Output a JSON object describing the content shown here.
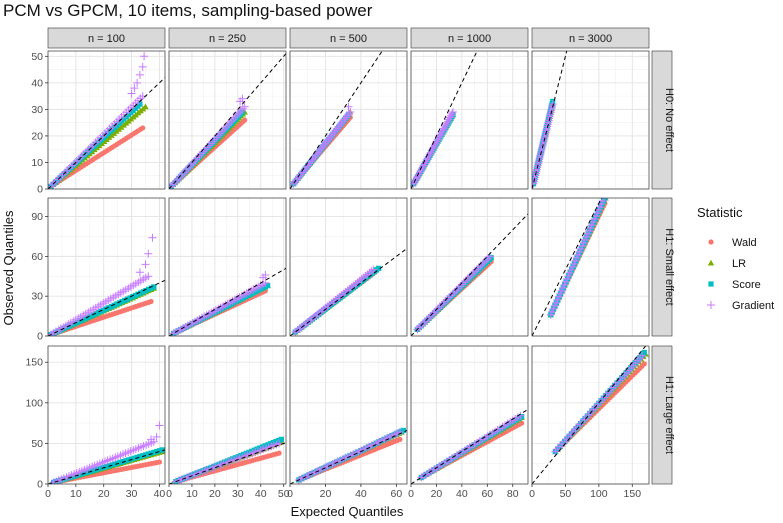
{
  "chart_data": {
    "type": "scatter",
    "title": "PCM vs GPCM, 10 items, sampling-based power",
    "xlabel": "Expected Quantiles",
    "ylabel": "Observed Quantiles",
    "legend": {
      "title": "Statistic",
      "position": "right",
      "entries": [
        {
          "name": "Wald",
          "color": "#F8766D",
          "marker": "circle"
        },
        {
          "name": "LR",
          "color": "#7CAE00",
          "marker": "triangle"
        },
        {
          "name": "Score",
          "color": "#00BFC4",
          "marker": "square"
        },
        {
          "name": "Gradient",
          "color": "#C77CFF",
          "marker": "plus"
        }
      ]
    },
    "reference_line": "identity (y = x), dashed black",
    "columns": [
      {
        "label": "n = 100",
        "xlim": [
          0,
          42
        ],
        "xticks": [
          0,
          10,
          20,
          30,
          40
        ]
      },
      {
        "label": "n = 250",
        "xlim": [
          0,
          51
        ],
        "xticks": [
          0,
          10,
          20,
          30,
          40,
          50
        ]
      },
      {
        "label": "n = 500",
        "xlim": [
          0,
          66
        ],
        "xticks": [
          0,
          20,
          40,
          60
        ]
      },
      {
        "label": "n = 1000",
        "xlim": [
          0,
          92
        ],
        "xticks": [
          0,
          20,
          40,
          60,
          80
        ]
      },
      {
        "label": "n = 3000",
        "xlim": [
          0,
          175
        ],
        "xticks": [
          0,
          50,
          100,
          150
        ]
      }
    ],
    "rows": [
      {
        "label": "H0: No effect",
        "ylim": [
          0,
          52
        ],
        "yticks": [
          0,
          10,
          20,
          30,
          40,
          50
        ]
      },
      {
        "label": "H1: Small effect",
        "ylim": [
          0,
          104
        ],
        "yticks": [
          0,
          30,
          60,
          90
        ]
      },
      {
        "label": "H1: Large effect",
        "ylim": [
          0,
          170
        ],
        "yticks": [
          0,
          50,
          100,
          150
        ]
      }
    ],
    "panels": [
      {
        "row": 0,
        "col": 0,
        "series": [
          {
            "name": "Wald",
            "x0": 1,
            "x1": 34,
            "y0": 1,
            "y1": 23
          },
          {
            "name": "LR",
            "x0": 1,
            "x1": 35,
            "y0": 1,
            "y1": 31
          },
          {
            "name": "Score",
            "x0": 1,
            "x1": 33,
            "y0": 1,
            "y1": 32
          },
          {
            "name": "Gradient",
            "x0": 1,
            "x1": 34,
            "y0": 1,
            "y1": 35,
            "extra": [
              [
                30,
                36
              ],
              [
                31,
                38
              ],
              [
                32,
                40
              ],
              [
                33,
                43
              ],
              [
                34,
                46
              ],
              [
                34.5,
                50
              ]
            ]
          }
        ]
      },
      {
        "row": 0,
        "col": 1,
        "series": [
          {
            "name": "Wald",
            "x0": 1,
            "x1": 33,
            "y0": 1,
            "y1": 26
          },
          {
            "name": "LR",
            "x0": 1,
            "x1": 33,
            "y0": 1,
            "y1": 29
          },
          {
            "name": "Score",
            "x0": 1,
            "x1": 32,
            "y0": 1,
            "y1": 29
          },
          {
            "name": "Gradient",
            "x0": 1,
            "x1": 33,
            "y0": 1,
            "y1": 31,
            "extra": [
              [
                31,
                33
              ],
              [
                32,
                34
              ]
            ]
          }
        ]
      },
      {
        "row": 0,
        "col": 2,
        "series": [
          {
            "name": "Wald",
            "x0": 2,
            "x1": 34,
            "y0": 2,
            "y1": 27
          },
          {
            "name": "LR",
            "x0": 2,
            "x1": 34,
            "y0": 2,
            "y1": 29
          },
          {
            "name": "Score",
            "x0": 2,
            "x1": 33,
            "y0": 2,
            "y1": 28
          },
          {
            "name": "Gradient",
            "x0": 2,
            "x1": 34,
            "y0": 2,
            "y1": 29,
            "extra": [
              [
                33,
                31
              ]
            ]
          }
        ]
      },
      {
        "row": 0,
        "col": 3,
        "series": [
          {
            "name": "Wald",
            "x0": 2,
            "x1": 33,
            "y0": 2,
            "y1": 28
          },
          {
            "name": "LR",
            "x0": 2,
            "x1": 33,
            "y0": 2,
            "y1": 28
          },
          {
            "name": "Score",
            "x0": 2,
            "x1": 33,
            "y0": 2,
            "y1": 28
          },
          {
            "name": "Gradient",
            "x0": 2,
            "x1": 33,
            "y0": 2,
            "y1": 29
          }
        ]
      },
      {
        "row": 0,
        "col": 4,
        "series": [
          {
            "name": "Wald",
            "x0": 2,
            "x1": 31,
            "y0": 2,
            "y1": 32
          },
          {
            "name": "LR",
            "x0": 2,
            "x1": 31,
            "y0": 2,
            "y1": 32
          },
          {
            "name": "Score",
            "x0": 2,
            "x1": 31,
            "y0": 2,
            "y1": 33
          },
          {
            "name": "Gradient",
            "x0": 2,
            "x1": 31,
            "y0": 2,
            "y1": 32
          }
        ]
      },
      {
        "row": 1,
        "col": 0,
        "series": [
          {
            "name": "Wald",
            "x0": 1,
            "x1": 37,
            "y0": 1,
            "y1": 26
          },
          {
            "name": "LR",
            "x0": 1,
            "x1": 38,
            "y0": 1,
            "y1": 36
          },
          {
            "name": "Score",
            "x0": 1,
            "x1": 38,
            "y0": 1,
            "y1": 37
          },
          {
            "name": "Gradient",
            "x0": 1,
            "x1": 36,
            "y0": 1,
            "y1": 45,
            "extra": [
              [
                33,
                48
              ],
              [
                35,
                54
              ],
              [
                36,
                62
              ],
              [
                37.5,
                74
              ]
            ]
          }
        ]
      },
      {
        "row": 1,
        "col": 1,
        "series": [
          {
            "name": "Wald",
            "x0": 2,
            "x1": 42,
            "y0": 2,
            "y1": 34
          },
          {
            "name": "LR",
            "x0": 2,
            "x1": 43,
            "y0": 2,
            "y1": 38
          },
          {
            "name": "Score",
            "x0": 2,
            "x1": 43,
            "y0": 2,
            "y1": 38
          },
          {
            "name": "Gradient",
            "x0": 2,
            "x1": 42,
            "y0": 2,
            "y1": 40,
            "extra": [
              [
                41,
                44
              ],
              [
                42,
                46
              ]
            ]
          }
        ]
      },
      {
        "row": 1,
        "col": 2,
        "series": [
          {
            "name": "Wald",
            "x0": 3,
            "x1": 48,
            "y0": 3,
            "y1": 48
          },
          {
            "name": "LR",
            "x0": 3,
            "x1": 48,
            "y0": 3,
            "y1": 50
          },
          {
            "name": "Score",
            "x0": 3,
            "x1": 50,
            "y0": 3,
            "y1": 51
          },
          {
            "name": "Gradient",
            "x0": 3,
            "x1": 47,
            "y0": 3,
            "y1": 50
          }
        ]
      },
      {
        "row": 1,
        "col": 3,
        "series": [
          {
            "name": "Wald",
            "x0": 5,
            "x1": 63,
            "y0": 5,
            "y1": 56
          },
          {
            "name": "LR",
            "x0": 5,
            "x1": 63,
            "y0": 5,
            "y1": 59
          },
          {
            "name": "Score",
            "x0": 5,
            "x1": 63,
            "y0": 5,
            "y1": 59
          },
          {
            "name": "Gradient",
            "x0": 5,
            "x1": 62,
            "y0": 5,
            "y1": 60
          }
        ]
      },
      {
        "row": 1,
        "col": 4,
        "series": [
          {
            "name": "Wald",
            "x0": 28,
            "x1": 109,
            "y0": 16,
            "y1": 100
          },
          {
            "name": "LR",
            "x0": 28,
            "x1": 110,
            "y0": 16,
            "y1": 104
          },
          {
            "name": "Score",
            "x0": 28,
            "x1": 109,
            "y0": 16,
            "y1": 104
          },
          {
            "name": "Gradient",
            "x0": 28,
            "x1": 108,
            "y0": 16,
            "y1": 104
          }
        ]
      },
      {
        "row": 2,
        "col": 0,
        "series": [
          {
            "name": "Wald",
            "x0": 2,
            "x1": 40,
            "y0": 2,
            "y1": 27
          },
          {
            "name": "LR",
            "x0": 2,
            "x1": 41,
            "y0": 2,
            "y1": 40
          },
          {
            "name": "Score",
            "x0": 2,
            "x1": 41,
            "y0": 2,
            "y1": 42
          },
          {
            "name": "Gradient",
            "x0": 2,
            "x1": 38,
            "y0": 2,
            "y1": 52,
            "extra": [
              [
                37,
                55
              ],
              [
                39,
                58
              ],
              [
                40,
                72
              ]
            ]
          }
        ]
      },
      {
        "row": 2,
        "col": 1,
        "series": [
          {
            "name": "Wald",
            "x0": 3,
            "x1": 48,
            "y0": 3,
            "y1": 38
          },
          {
            "name": "LR",
            "x0": 3,
            "x1": 49,
            "y0": 3,
            "y1": 52
          },
          {
            "name": "Score",
            "x0": 3,
            "x1": 49,
            "y0": 3,
            "y1": 55
          },
          {
            "name": "Gradient",
            "x0": 3,
            "x1": 48,
            "y0": 3,
            "y1": 50
          }
        ]
      },
      {
        "row": 2,
        "col": 2,
        "series": [
          {
            "name": "Wald",
            "x0": 5,
            "x1": 62,
            "y0": 5,
            "y1": 55
          },
          {
            "name": "LR",
            "x0": 5,
            "x1": 63,
            "y0": 5,
            "y1": 64
          },
          {
            "name": "Score",
            "x0": 5,
            "x1": 64,
            "y0": 5,
            "y1": 66
          },
          {
            "name": "Gradient",
            "x0": 5,
            "x1": 62,
            "y0": 5,
            "y1": 64
          }
        ]
      },
      {
        "row": 2,
        "col": 3,
        "series": [
          {
            "name": "Wald",
            "x0": 8,
            "x1": 87,
            "y0": 8,
            "y1": 75
          },
          {
            "name": "LR",
            "x0": 8,
            "x1": 87,
            "y0": 8,
            "y1": 82
          },
          {
            "name": "Score",
            "x0": 8,
            "x1": 87,
            "y0": 8,
            "y1": 83
          },
          {
            "name": "Gradient",
            "x0": 8,
            "x1": 86,
            "y0": 8,
            "y1": 84
          }
        ]
      },
      {
        "row": 2,
        "col": 4,
        "series": [
          {
            "name": "Wald",
            "x0": 35,
            "x1": 168,
            "y0": 40,
            "y1": 148
          },
          {
            "name": "LR",
            "x0": 35,
            "x1": 170,
            "y0": 40,
            "y1": 160
          },
          {
            "name": "Score",
            "x0": 35,
            "x1": 168,
            "y0": 40,
            "y1": 162
          },
          {
            "name": "Gradient",
            "x0": 35,
            "x1": 165,
            "y0": 40,
            "y1": 158
          }
        ]
      }
    ]
  }
}
